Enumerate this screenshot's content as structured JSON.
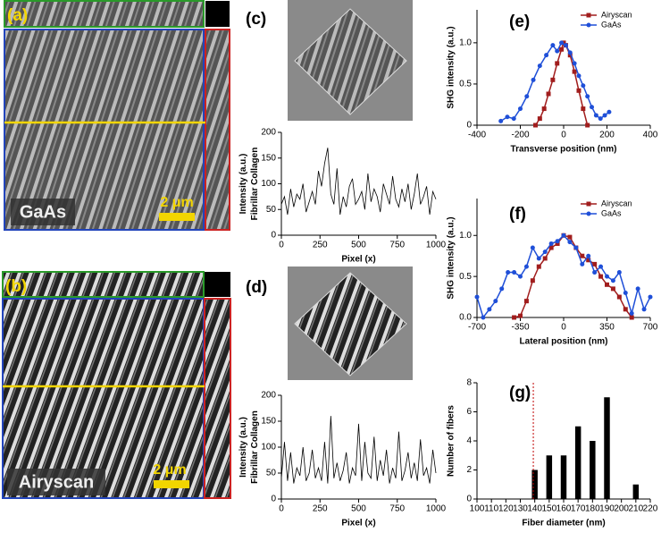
{
  "images": [
    {
      "panel_label": "(a)",
      "label": "GaAs",
      "scale_bar": "2 μm"
    },
    {
      "panel_label": "(b)",
      "label": "Airyscan",
      "scale_bar": "2 μm"
    }
  ],
  "chart_data": [
    {
      "type": "line",
      "panel_label": "(c)",
      "xlabel": "Pixel (x)",
      "ylabel": [
        "Intensity (a.u.)",
        "Fibrillar Collagen"
      ],
      "x": [
        0,
        20,
        40,
        60,
        80,
        100,
        120,
        140,
        160,
        180,
        200,
        220,
        240,
        260,
        280,
        300,
        320,
        340,
        360,
        380,
        400,
        420,
        440,
        460,
        480,
        500,
        520,
        540,
        560,
        580,
        600,
        620,
        640,
        660,
        680,
        700,
        720,
        740,
        760,
        780,
        800,
        820,
        840,
        860,
        880,
        900,
        920,
        940,
        960,
        980,
        1000
      ],
      "values": [
        60,
        75,
        40,
        90,
        55,
        80,
        70,
        100,
        45,
        65,
        85,
        60,
        125,
        95,
        140,
        170,
        80,
        60,
        130,
        40,
        75,
        55,
        95,
        110,
        60,
        70,
        85,
        50,
        120,
        65,
        90,
        75,
        45,
        100,
        80,
        60,
        115,
        70,
        55,
        90,
        65,
        100,
        50,
        80,
        120,
        60,
        75,
        95,
        40,
        85,
        70
      ],
      "color": "#000000",
      "xlim": [
        0,
        1000
      ],
      "ylim": [
        0,
        200
      ],
      "xticks": [
        0,
        250,
        500,
        750,
        1000
      ],
      "yticks": [
        0,
        50,
        100,
        150,
        200
      ]
    },
    {
      "type": "line",
      "panel_label": "(d)",
      "xlabel": "Pixel (x)",
      "ylabel": [
        "Intensity (a.u.)",
        "Fibrillar Collagen"
      ],
      "x": [
        0,
        20,
        40,
        60,
        80,
        100,
        120,
        140,
        160,
        180,
        200,
        220,
        240,
        260,
        280,
        300,
        320,
        340,
        360,
        380,
        400,
        420,
        440,
        460,
        480,
        500,
        520,
        540,
        560,
        580,
        600,
        620,
        640,
        660,
        680,
        700,
        720,
        740,
        760,
        780,
        800,
        820,
        840,
        860,
        880,
        900,
        920,
        940,
        960,
        980,
        1000
      ],
      "values": [
        40,
        110,
        35,
        90,
        30,
        60,
        45,
        100,
        35,
        50,
        95,
        40,
        60,
        35,
        110,
        30,
        160,
        40,
        70,
        35,
        55,
        90,
        30,
        60,
        45,
        145,
        35,
        110,
        50,
        40,
        120,
        35,
        75,
        45,
        95,
        30,
        60,
        40,
        130,
        35,
        55,
        90,
        40,
        70,
        35,
        115,
        45,
        60,
        30,
        95,
        50
      ],
      "color": "#000000",
      "xlim": [
        0,
        1000
      ],
      "ylim": [
        0,
        200
      ],
      "xticks": [
        0,
        250,
        500,
        750,
        1000
      ],
      "yticks": [
        0,
        50,
        100,
        150,
        200
      ]
    },
    {
      "type": "line",
      "panel_label": "(e)",
      "xlabel": "Transverse position (nm)",
      "ylabel": [
        "SHG intensity (a.u.)"
      ],
      "legend": "top-right",
      "xlim": [
        -400,
        400
      ],
      "ylim": [
        0,
        1.4
      ],
      "xticks": [
        -400,
        -200,
        0,
        200,
        400
      ],
      "yticks": [
        0,
        0.5,
        {
          "value": 1,
          "label": "1.0"
        }
      ],
      "series": [
        {
          "name": "Airyscan",
          "color": "#a11d1d",
          "marker": "square",
          "x": [
            -130,
            -110,
            -90,
            -70,
            -50,
            -30,
            -10,
            0,
            10,
            30,
            50,
            70,
            90,
            110
          ],
          "values": [
            0,
            0.08,
            0.2,
            0.38,
            0.55,
            0.75,
            0.92,
            1.0,
            0.97,
            0.85,
            0.65,
            0.42,
            0.2,
            0
          ]
        },
        {
          "name": "GaAs",
          "color": "#1f4fd8",
          "marker": "circle",
          "x": [
            -290,
            -260,
            -230,
            -200,
            -170,
            -140,
            -110,
            -80,
            -50,
            -30,
            -10,
            10,
            30,
            50,
            70,
            90,
            110,
            130,
            150,
            170,
            190,
            210
          ],
          "values": [
            0.05,
            0.1,
            0.08,
            0.2,
            0.35,
            0.55,
            0.72,
            0.85,
            0.97,
            0.9,
            1.0,
            0.97,
            0.88,
            0.75,
            0.6,
            0.48,
            0.35,
            0.22,
            0.12,
            0.08,
            0.12,
            0.16
          ]
        }
      ]
    },
    {
      "type": "line",
      "panel_label": "(f)",
      "xlabel": "Lateral position (nm)",
      "ylabel": [
        "SHG intensity (a.u.)"
      ],
      "legend": "top-right",
      "xlim": [
        -700,
        700
      ],
      "ylim": [
        0,
        1.45
      ],
      "xticks": [
        -700,
        -350,
        0,
        350,
        700
      ],
      "yticks": [
        {
          "value": 0,
          "label": "0.0"
        },
        0.5,
        {
          "value": 1,
          "label": "1.0"
        }
      ],
      "series": [
        {
          "name": "Airyscan",
          "color": "#a11d1d",
          "marker": "square",
          "x": [
            -400,
            -350,
            -300,
            -250,
            -200,
            -150,
            -100,
            -50,
            0,
            50,
            100,
            150,
            200,
            250,
            300,
            350,
            400,
            450,
            500,
            550
          ],
          "values": [
            0,
            0.02,
            0.2,
            0.45,
            0.62,
            0.72,
            0.85,
            0.9,
            1.0,
            0.98,
            0.85,
            0.75,
            0.7,
            0.65,
            0.5,
            0.4,
            0.35,
            0.25,
            0.1,
            0
          ]
        },
        {
          "name": "GaAs",
          "color": "#1f4fd8",
          "marker": "circle",
          "x": [
            -700,
            -650,
            -600,
            -550,
            -500,
            -450,
            -400,
            -350,
            -300,
            -250,
            -200,
            -150,
            -100,
            -50,
            0,
            50,
            100,
            150,
            200,
            250,
            300,
            350,
            400,
            450,
            500,
            550,
            600,
            650,
            700
          ],
          "values": [
            0.25,
            0,
            0.1,
            0.2,
            0.35,
            0.55,
            0.55,
            0.5,
            0.62,
            0.85,
            0.72,
            0.8,
            0.9,
            0.93,
            1.0,
            0.92,
            0.85,
            0.65,
            0.75,
            0.55,
            0.62,
            0.5,
            0.45,
            0.55,
            0.3,
            0.05,
            0.35,
            0.1,
            0.25
          ]
        }
      ]
    },
    {
      "type": "bar",
      "panel_label": "(g)",
      "xlabel": "Fiber diameter (nm)",
      "ylabel": [
        "Number of fibers"
      ],
      "x": [
        140,
        150,
        160,
        170,
        180,
        190,
        210
      ],
      "values": [
        2,
        3,
        3,
        5,
        4,
        7,
        1
      ],
      "color": "#000000",
      "reference_line": 139,
      "reference_color": "#c00000",
      "xlim": [
        100,
        220
      ],
      "ylim": [
        0,
        8
      ],
      "xticks": [
        100,
        110,
        120,
        130,
        140,
        150,
        160,
        170,
        180,
        190,
        200,
        210,
        220
      ],
      "yticks": [
        0,
        2,
        4,
        6,
        8
      ]
    }
  ]
}
